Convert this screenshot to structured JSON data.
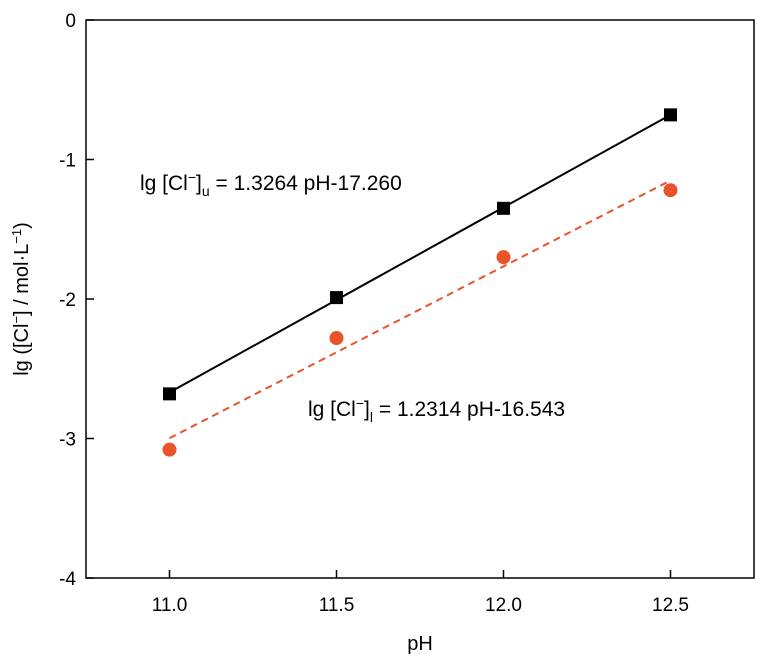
{
  "chart_data": {
    "type": "scatter",
    "xlabel": "pH",
    "ylabel": {
      "prefix": "lg ([Cl",
      "sup1": "−",
      "mid": "] / mol·L",
      "sup2": "−1",
      "suffix": ")"
    },
    "xlim": [
      10.75,
      12.75
    ],
    "ylim": [
      -4,
      0
    ],
    "xticks": [
      11.0,
      11.5,
      12.0,
      12.5
    ],
    "xtick_labels": [
      "11.0",
      "11.5",
      "12.0",
      "12.5"
    ],
    "yticks": [
      0,
      -1,
      -2,
      -3,
      -4
    ],
    "ytick_labels": [
      "0",
      "-1",
      "-2",
      "-3",
      "-4"
    ],
    "grid": false,
    "series": [
      {
        "marker": "square",
        "color": "#000000",
        "x": [
          11.0,
          11.5,
          12.0,
          12.5
        ],
        "y": [
          -2.68,
          -1.99,
          -1.35,
          -0.68
        ],
        "fit": {
          "slope": 1.3264,
          "intercept": -17.26,
          "style": "solid",
          "color": "#000000"
        }
      },
      {
        "marker": "circle",
        "color": "#E8532A",
        "x": [
          11.0,
          11.5,
          12.0,
          12.5
        ],
        "y": [
          -3.08,
          -2.28,
          -1.7,
          -1.22
        ],
        "fit": {
          "slope": 1.2314,
          "intercept": -16.543,
          "style": "dashed",
          "color": "#E8532A"
        }
      }
    ],
    "annotations": [
      {
        "prefix": "lg [Cl",
        "sup": "−",
        "mid": "]",
        "sub": "u",
        "suffix": " = 1.3264 pH-17.260"
      },
      {
        "prefix": "lg [Cl",
        "sup": "−",
        "mid": "]",
        "sub": "l",
        "suffix": " = 1.2314 pH-16.543"
      }
    ]
  }
}
